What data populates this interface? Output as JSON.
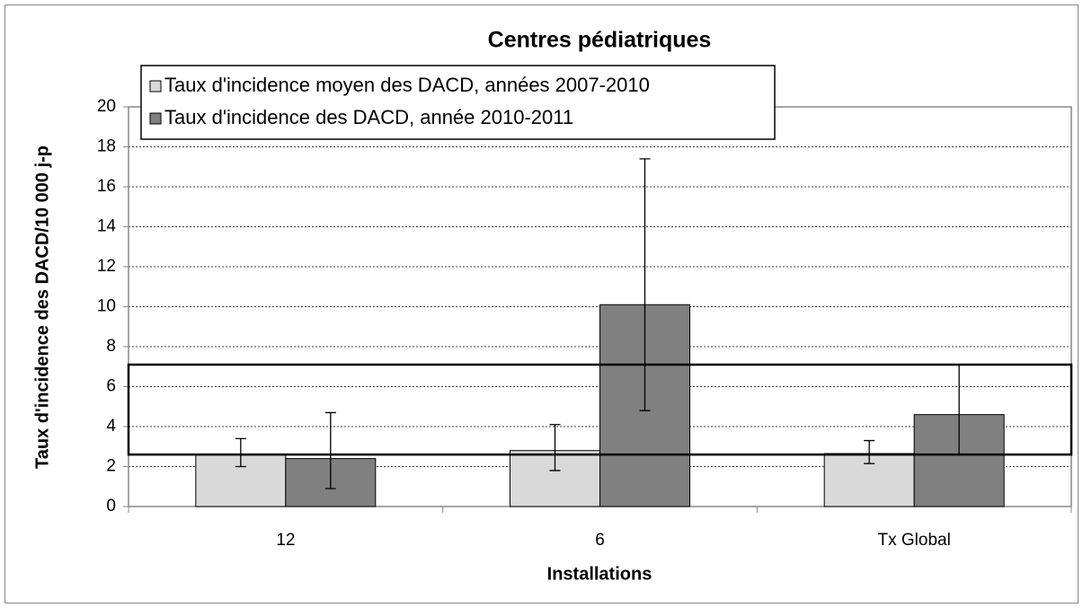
{
  "chart_data": {
    "type": "bar",
    "title": "Centres pédiatriques",
    "x_label": "Installations",
    "y_label": "Taux d'incidence des DACD/10 000 j-p",
    "categories": [
      "12",
      "6",
      "Tx Global"
    ],
    "series": [
      {
        "name": "Taux d'incidence moyen des DACD, années 2007-2010",
        "color": "#d9d9d9",
        "values": [
          2.6,
          2.8,
          2.65
        ],
        "ci_low": [
          2.0,
          1.8,
          2.15
        ],
        "ci_high": [
          3.4,
          4.1,
          3.3
        ]
      },
      {
        "name": "Taux d'incidence des DACD, année 2010-2011",
        "color": "#808080",
        "values": [
          2.4,
          10.1,
          4.6
        ],
        "ci_low": [
          0.9,
          4.8,
          2.6
        ],
        "ci_high": [
          4.7,
          17.4,
          7.1
        ]
      }
    ],
    "reference_band": [
      2.6,
      7.1
    ],
    "ylim": [
      0,
      20
    ],
    "yticks": [
      0,
      2,
      4,
      6,
      8,
      10,
      12,
      14,
      16,
      18,
      20
    ],
    "grid": true
  }
}
